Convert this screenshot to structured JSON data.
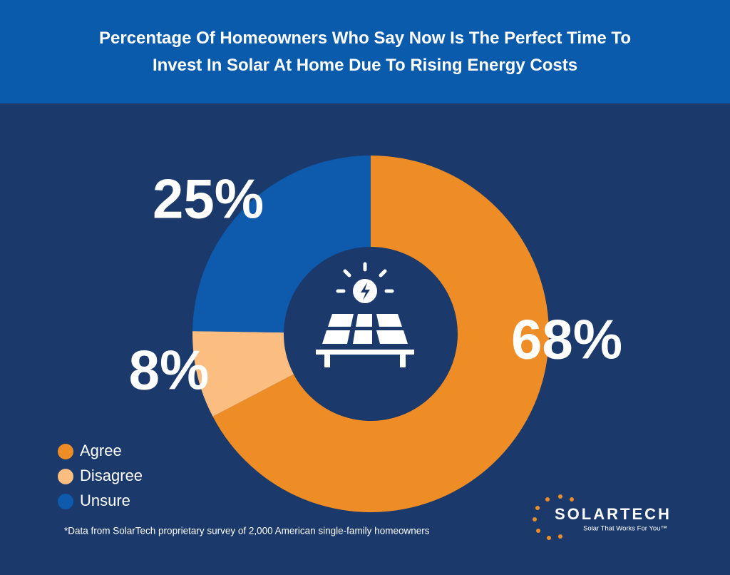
{
  "chart_data": {
    "type": "donut",
    "title": "Percentage Of Homeowners Who Say Now Is The Perfect Time To Invest In Solar At Home Due To Rising Energy Costs",
    "categories": [
      "Agree",
      "Disagree",
      "Unsure"
    ],
    "values": [
      68,
      8,
      25
    ],
    "value_labels": [
      "68%",
      "8%",
      "25%"
    ],
    "colors": [
      "#ee8c25",
      "#fbbd80",
      "#0e5aad"
    ],
    "legend": "bottom-left",
    "footnote": "*Data from SolarTech proprietary survey of 2,000 American single-family homeowners"
  },
  "logo": {
    "name": "SOLARTECH",
    "tagline": "Solar That Works For You™"
  }
}
